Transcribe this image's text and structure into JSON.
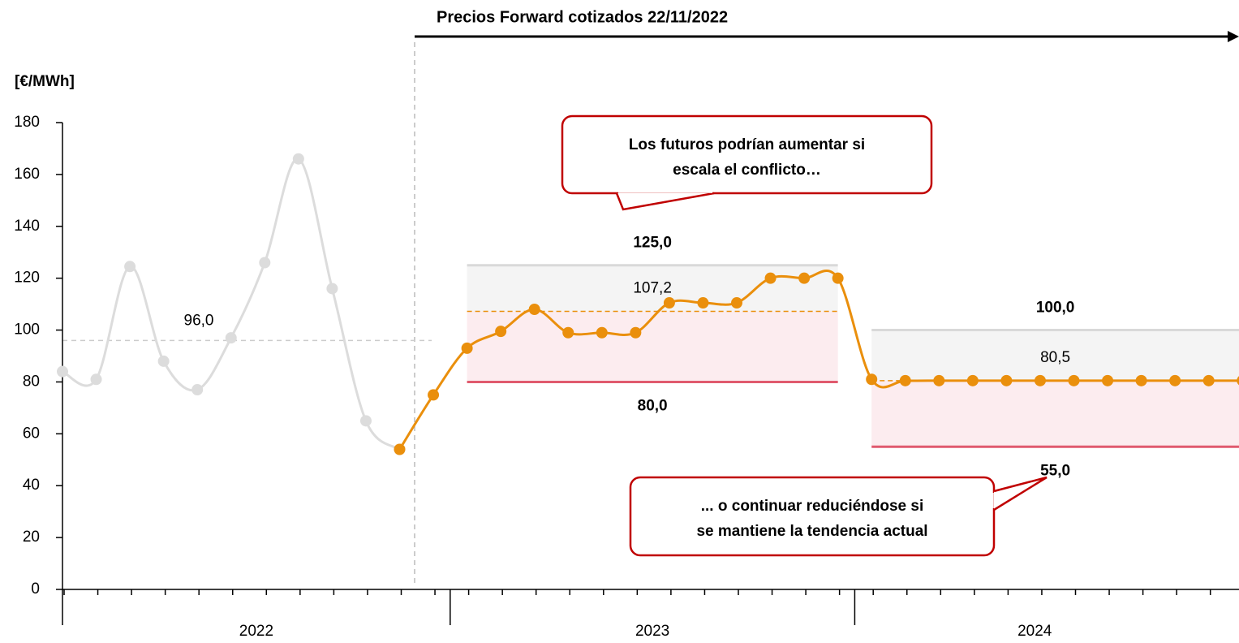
{
  "chart_data": {
    "type": "line",
    "title": "Precios Forward cotizados 22/11/2022",
    "y_label": "[€/MWh]",
    "categories": [
      null,
      null,
      null,
      null,
      null,
      null,
      null,
      null,
      null,
      null,
      null,
      null,
      null,
      null,
      null,
      null,
      null,
      null,
      null,
      null,
      null,
      null,
      null,
      null,
      null,
      null,
      null,
      null,
      null,
      null,
      null,
      null,
      null,
      null,
      null,
      null
    ],
    "years": [
      "2022",
      "2023",
      "2024"
    ],
    "series": [
      {
        "color": "#dcdcdc",
        "values": [
          84,
          81,
          124.5,
          88,
          77,
          97,
          126,
          166,
          116,
          65,
          54,
          null,
          null,
          null,
          null,
          null,
          null,
          null,
          null,
          null,
          null,
          null,
          null,
          null,
          null,
          null,
          null,
          null,
          null,
          null,
          null,
          null,
          null,
          null,
          null,
          null
        ]
      },
      {
        "color": "#ea8f0c",
        "values": [
          null,
          null,
          null,
          null,
          null,
          null,
          null,
          null,
          null,
          null,
          54,
          75,
          93,
          99.5,
          108,
          99,
          99,
          99,
          110.5,
          110.5,
          110.5,
          120,
          120,
          120,
          81,
          80.5,
          80.5,
          80.5,
          80.5,
          80.5,
          80.5,
          80.5,
          80.5,
          80.5,
          80.5,
          80.5
        ]
      }
    ],
    "reference_lines": [
      {
        "value": 96,
        "label": "96,0"
      }
    ],
    "bands": [
      {
        "high": 125,
        "high_label": "125,0",
        "mid": 107.2,
        "mid_label": "107,2",
        "low": 80,
        "low_label": "80,0"
      },
      {
        "high": 100,
        "high_label": "100,0",
        "mid": 80.5,
        "mid_label": "80,5",
        "low": 55,
        "low_label": "55,0"
      }
    ],
    "annotations": [
      {
        "lines": [
          "Los futuros podrían aumentar si",
          "escala el conflicto…"
        ]
      },
      {
        "lines": [
          "... o continuar reduciéndose si",
          "se mantiene la tendencia actual"
        ]
      }
    ],
    "ylim": [
      0,
      180
    ],
    "yticks": [
      0,
      20,
      40,
      60,
      80,
      100,
      120,
      140,
      160,
      180
    ]
  }
}
